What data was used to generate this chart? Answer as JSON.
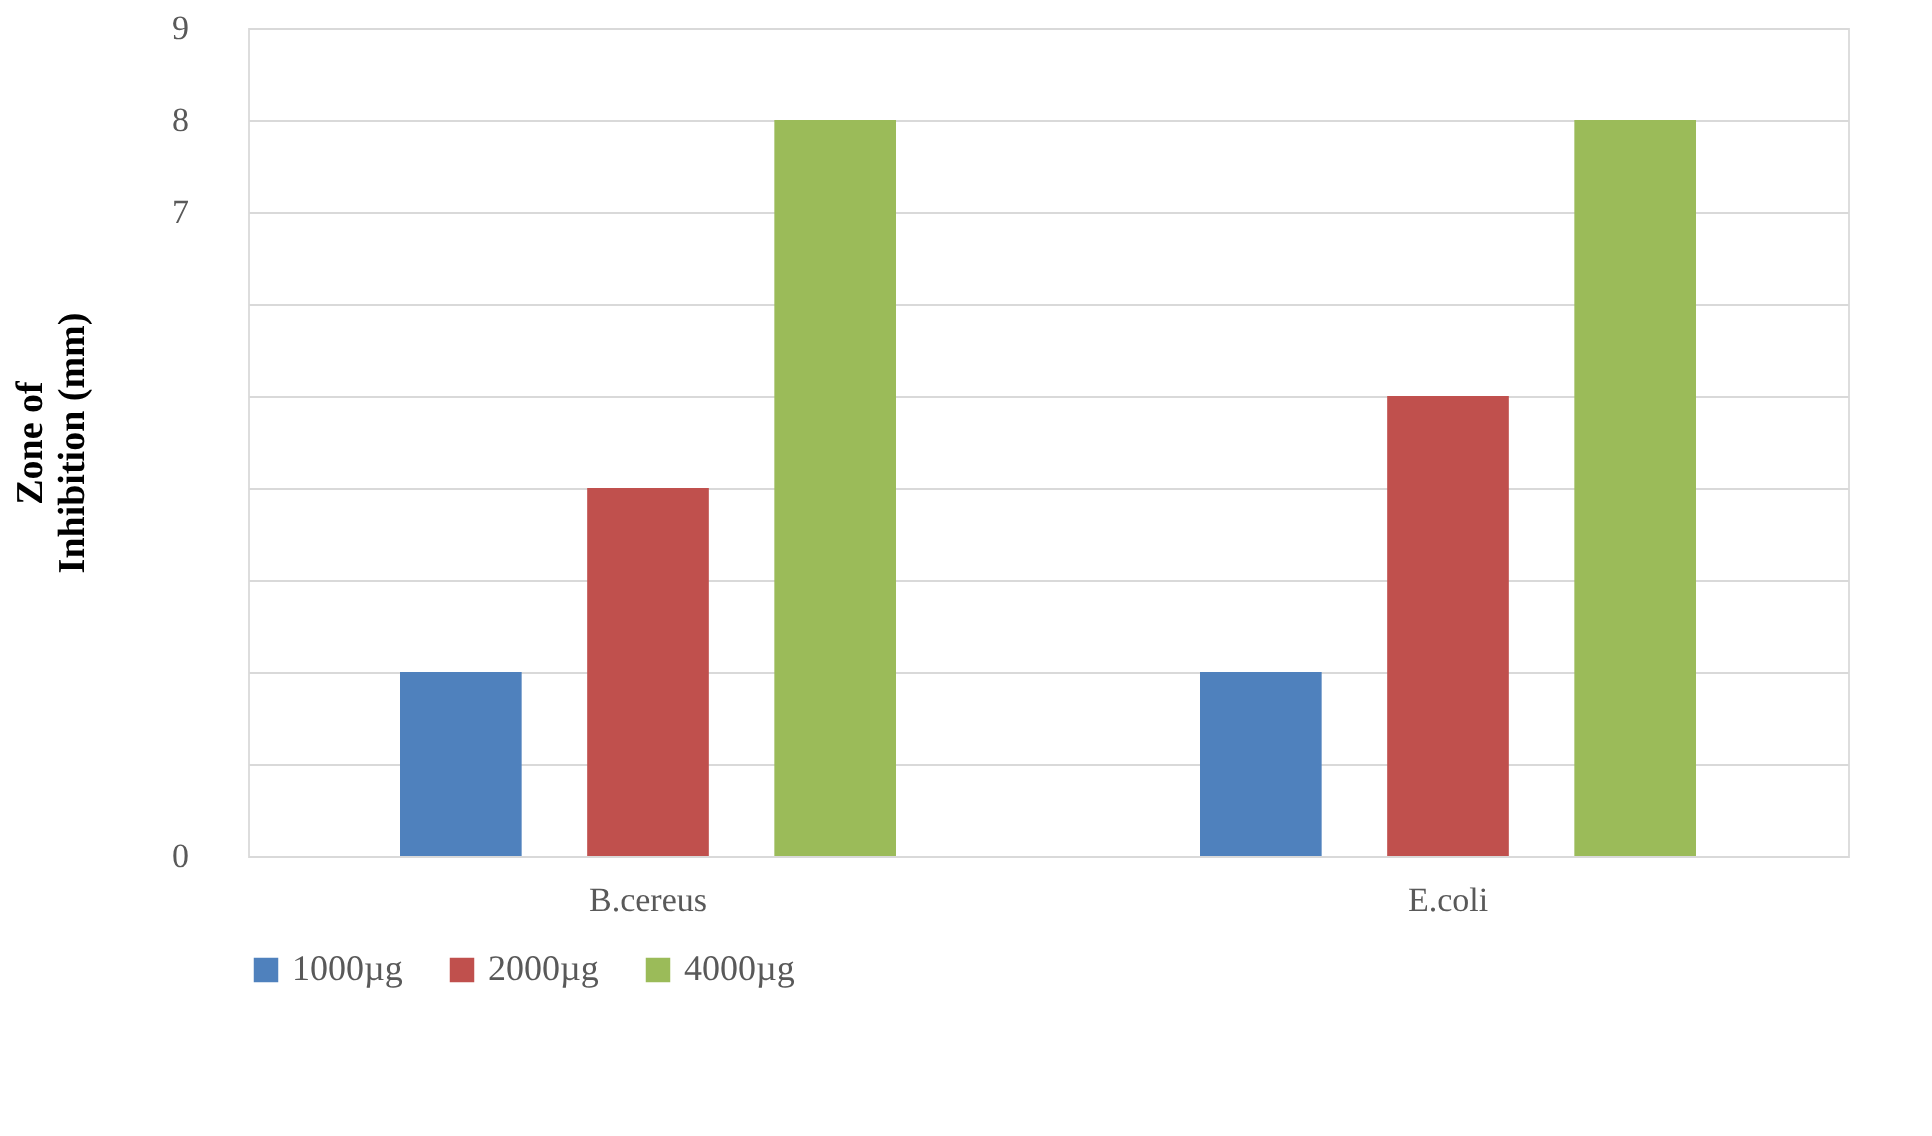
{
  "chart_data": {
    "type": "bar",
    "ylabel": "Zone of\nInhibition (mm)",
    "categories": [
      "B.cereus",
      "E.coli"
    ],
    "series": [
      {
        "name": "1000µg",
        "color": "#4f81bd",
        "values": [
          2,
          2
        ]
      },
      {
        "name": "2000µg",
        "color": "#c0504d",
        "values": [
          4,
          5
        ]
      },
      {
        "name": "4000µg",
        "color": "#9bbb59",
        "values": [
          8,
          8
        ]
      }
    ],
    "ylim": [
      0,
      9
    ],
    "yticks": [
      0,
      {
        "value": 1,
        "label": null
      },
      {
        "value": 2,
        "label": null
      },
      {
        "value": 3,
        "label": null
      },
      {
        "value": 4,
        "label": null
      },
      {
        "value": 5,
        "label": null
      },
      {
        "value": 6,
        "label": null
      },
      7,
      8,
      9
    ],
    "grid": "y",
    "legend": "bottom"
  }
}
